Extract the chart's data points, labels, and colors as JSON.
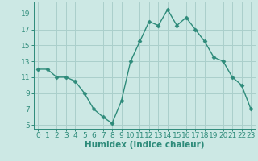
{
  "x": [
    0,
    1,
    2,
    3,
    4,
    5,
    6,
    7,
    8,
    9,
    10,
    11,
    12,
    13,
    14,
    15,
    16,
    17,
    18,
    19,
    20,
    21,
    22,
    23
  ],
  "y": [
    12,
    12,
    11,
    11,
    10.5,
    9,
    7,
    6,
    5.2,
    8,
    13,
    15.5,
    18,
    17.5,
    19.5,
    17.5,
    18.5,
    17,
    15.5,
    13.5,
    13,
    11,
    10,
    7
  ],
  "line_color": "#2e8b7a",
  "marker": "D",
  "marker_size": 2.5,
  "bg_color": "#cce8e4",
  "grid_color": "#aacfcb",
  "xlabel": "Humidex (Indice chaleur)",
  "yticks": [
    5,
    7,
    9,
    11,
    13,
    15,
    17,
    19
  ],
  "xticks": [
    0,
    1,
    2,
    3,
    4,
    5,
    6,
    7,
    8,
    9,
    10,
    11,
    12,
    13,
    14,
    15,
    16,
    17,
    18,
    19,
    20,
    21,
    22,
    23
  ],
  "xlim": [
    -0.5,
    23.5
  ],
  "ylim": [
    4.5,
    20.5
  ],
  "xlabel_fontsize": 7.5,
  "tick_fontsize": 6.5
}
